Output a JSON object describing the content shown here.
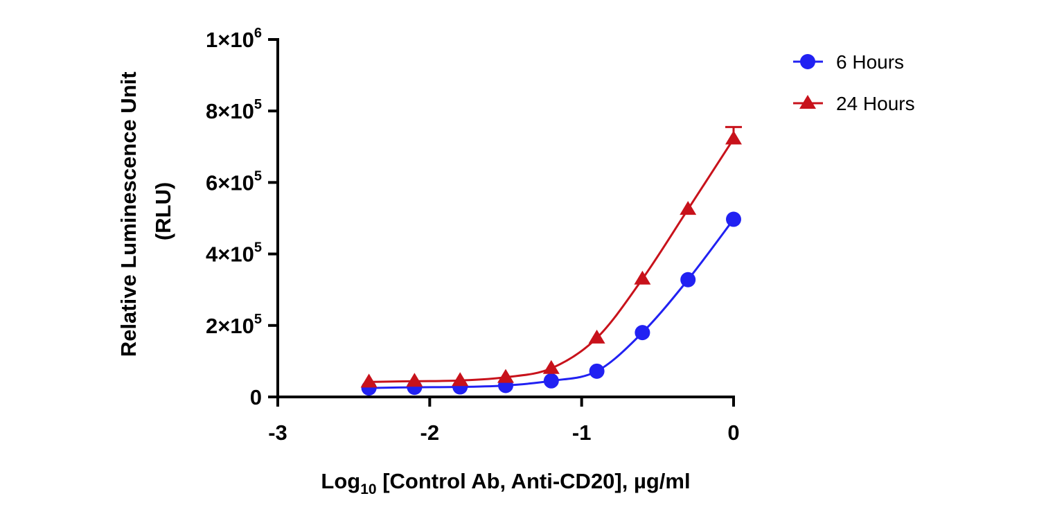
{
  "chart_data": {
    "type": "line",
    "title": "",
    "xlabel": {
      "prefix": "Log",
      "subscript": "10",
      "suffix": " [Control Ab, Anti-CD20], µg/ml"
    },
    "ylabel": [
      "Relative Luminescence Unit",
      "(RLU)"
    ],
    "xlim": [
      -3,
      0
    ],
    "ylim": [
      0,
      1000000
    ],
    "x_ticks": [
      {
        "value": -3,
        "label": "-3"
      },
      {
        "value": -2,
        "label": "-2"
      },
      {
        "value": -1,
        "label": "-1"
      },
      {
        "value": 0,
        "label": "0"
      }
    ],
    "y_ticks": [
      {
        "value": 0,
        "mantissa": "0",
        "exponent": ""
      },
      {
        "value": 200000,
        "mantissa": "2×10",
        "exponent": "5"
      },
      {
        "value": 400000,
        "mantissa": "4×10",
        "exponent": "5"
      },
      {
        "value": 600000,
        "mantissa": "6×10",
        "exponent": "5"
      },
      {
        "value": 800000,
        "mantissa": "8×10",
        "exponent": "5"
      },
      {
        "value": 1000000,
        "mantissa": "1×10",
        "exponent": "6"
      }
    ],
    "grid": false,
    "legend_position": "top-right",
    "series": [
      {
        "name": "6 Hours",
        "color": "#2121f2",
        "marker": "circle",
        "x": [
          -2.4,
          -2.1,
          -1.8,
          -1.5,
          -1.2,
          -0.9,
          -0.6,
          -0.3,
          0.0
        ],
        "y": [
          25000,
          27000,
          28000,
          32000,
          45000,
          72000,
          180000,
          328000,
          497000
        ],
        "error": [
          0,
          0,
          0,
          0,
          0,
          0,
          0,
          0,
          0
        ]
      },
      {
        "name": "24 Hours",
        "color": "#c8121b",
        "marker": "triangle",
        "x": [
          -2.4,
          -2.1,
          -1.8,
          -1.5,
          -1.2,
          -0.9,
          -0.6,
          -0.3,
          0.0
        ],
        "y": [
          42000,
          44000,
          46000,
          55000,
          80000,
          165000,
          330000,
          525000,
          722000
        ],
        "error": [
          0,
          0,
          0,
          0,
          0,
          0,
          0,
          0,
          33000
        ]
      }
    ]
  }
}
